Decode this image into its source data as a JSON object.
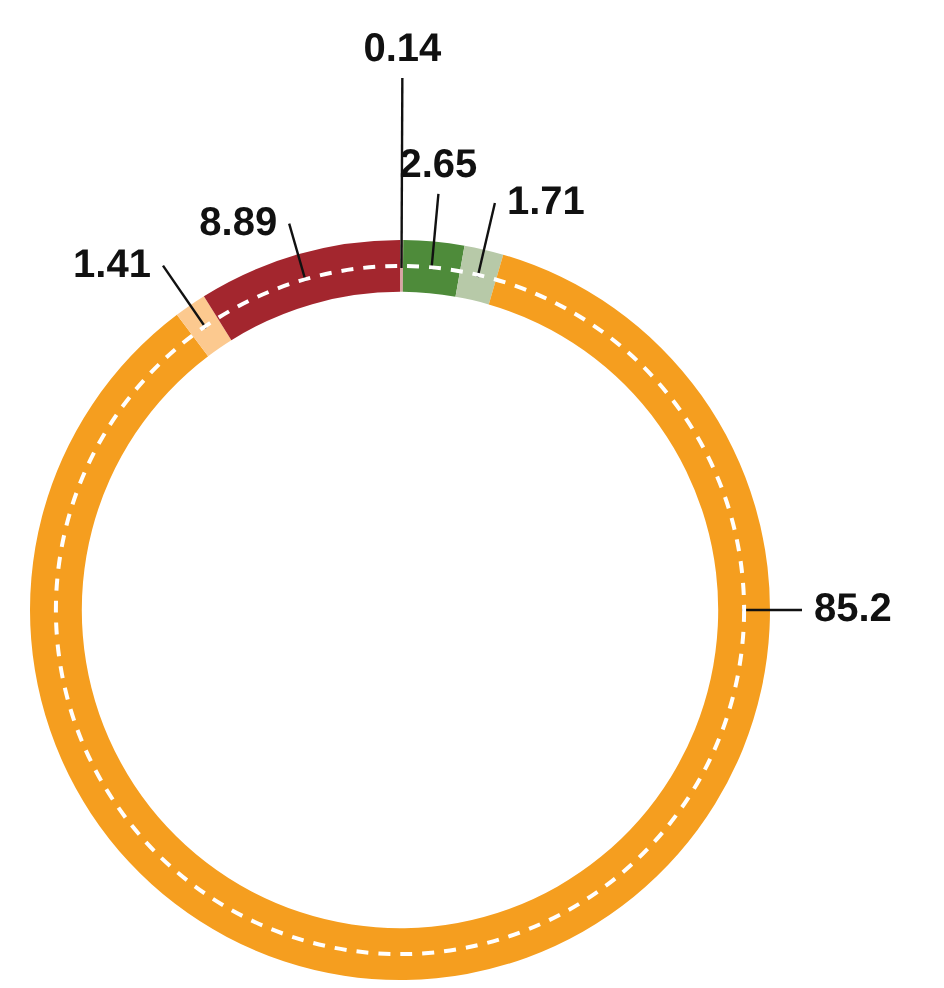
{
  "chart_data": {
    "type": "donut",
    "categories": [
      null,
      null,
      null,
      null,
      null,
      null
    ],
    "values": [
      0.14,
      2.65,
      1.71,
      85.2,
      1.41,
      8.89
    ],
    "colors": [
      "#d9a3a3",
      "#4e8b3a",
      "#b7c9a8",
      "#f59e1f",
      "#fcc98f",
      "#a3262e"
    ],
    "data_labels": true
  }
}
